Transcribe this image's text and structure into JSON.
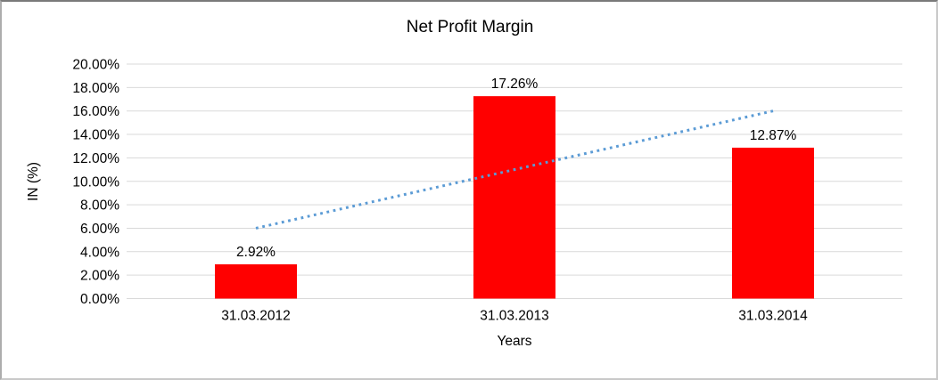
{
  "chart_data": {
    "type": "bar",
    "title": "Net Profit Margin",
    "xlabel": "Years",
    "ylabel": "IN (%)",
    "categories": [
      "31.03.2012",
      "31.03.2013",
      "31.03.2014"
    ],
    "values": [
      2.92,
      17.26,
      12.87
    ],
    "value_labels": [
      "2.92%",
      "17.26%",
      "12.87%"
    ],
    "y_ticks": [
      "0.00%",
      "2.00%",
      "4.00%",
      "6.00%",
      "8.00%",
      "10.00%",
      "12.00%",
      "14.00%",
      "16.00%",
      "18.00%",
      "20.00%"
    ],
    "ylim": [
      0,
      20
    ],
    "y_tick_step": 2,
    "grid": true,
    "legend": "none",
    "bar_color": "#FF0000",
    "gridline_color": "#D9D9D9",
    "text_color": "#000000",
    "trendline": {
      "type": "linear",
      "style": "dotted",
      "color": "#5B9BD5",
      "start_value": 6.0,
      "end_value": 16.0
    }
  }
}
